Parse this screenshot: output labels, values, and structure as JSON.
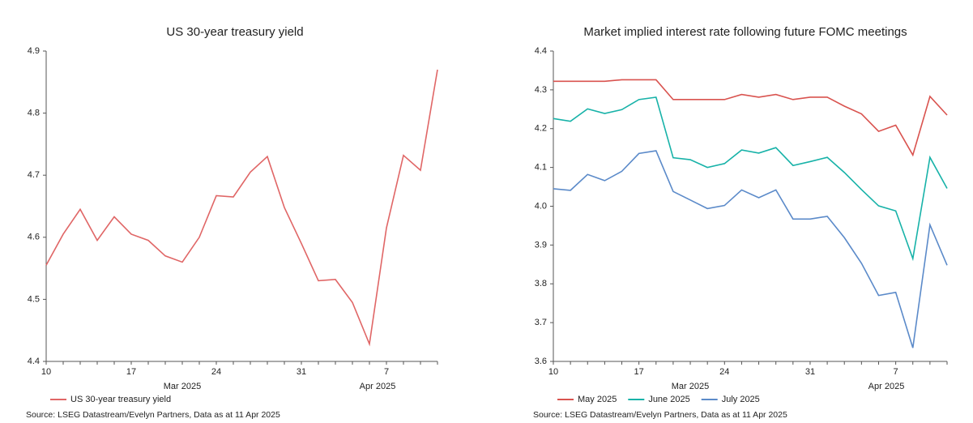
{
  "chart_data": [
    {
      "type": "line",
      "title": "US 30-year treasury yield",
      "categories": [
        "10",
        null,
        null,
        null,
        null,
        "17",
        null,
        null,
        null,
        null,
        "24",
        null,
        null,
        null,
        null,
        "31",
        null,
        null,
        null,
        null,
        "7",
        null,
        null,
        null
      ],
      "x_group_labels": [
        "Mar 2025",
        "Apr 2025"
      ],
      "series": [
        {
          "name": "US 30-year treasury yield",
          "color": "#e06666",
          "values": [
            4.555,
            4.605,
            4.645,
            4.595,
            4.633,
            4.605,
            4.595,
            4.57,
            4.56,
            4.6,
            4.667,
            4.665,
            4.705,
            4.73,
            4.648,
            4.59,
            4.53,
            4.532,
            4.495,
            4.428,
            4.615,
            4.732,
            4.708,
            4.87
          ]
        }
      ],
      "ylim": [
        4.4,
        4.9
      ],
      "yticks": [
        4.4,
        4.5,
        4.6,
        4.7,
        4.8,
        4.9
      ],
      "source": "Source: LSEG Datastream/Evelyn Partners, Data as at 11 Apr 2025"
    },
    {
      "type": "line",
      "title": "Market implied interest rate following future FOMC meetings",
      "categories": [
        "10",
        null,
        null,
        null,
        null,
        "17",
        null,
        null,
        null,
        null,
        "24",
        null,
        null,
        null,
        null,
        "31",
        null,
        null,
        null,
        null,
        "7",
        null,
        null,
        null
      ],
      "x_group_labels": [
        "Mar 2025",
        "Apr 2025"
      ],
      "series": [
        {
          "name": "May 2025",
          "color": "#d9534f",
          "values": [
            4.322,
            4.322,
            4.322,
            4.322,
            4.326,
            4.326,
            4.326,
            4.275,
            4.275,
            4.275,
            4.275,
            4.288,
            4.281,
            4.288,
            4.275,
            4.281,
            4.281,
            4.258,
            4.238,
            4.193,
            4.209,
            4.132,
            4.283,
            4.235
          ]
        },
        {
          "name": "June 2025",
          "color": "#17b2a8",
          "values": [
            4.226,
            4.219,
            4.251,
            4.239,
            4.249,
            4.275,
            4.281,
            4.125,
            4.12,
            4.1,
            4.11,
            4.145,
            4.137,
            4.151,
            4.105,
            4.115,
            4.126,
            4.087,
            4.043,
            4.001,
            3.988,
            3.865,
            4.126,
            4.046
          ]
        },
        {
          "name": "July 2025",
          "color": "#5b8ac9",
          "values": [
            4.045,
            4.041,
            4.082,
            4.066,
            4.09,
            4.136,
            4.143,
            4.038,
            4.016,
            3.994,
            4.002,
            4.042,
            4.022,
            4.042,
            3.967,
            3.967,
            3.974,
            3.919,
            3.853,
            3.77,
            3.778,
            3.635,
            3.952,
            3.848
          ]
        }
      ],
      "ylim": [
        3.6,
        4.4
      ],
      "yticks": [
        3.6,
        3.7,
        3.8,
        3.9,
        4.0,
        4.1,
        4.2,
        4.3,
        4.4
      ],
      "source": "Source: LSEG Datastream/Evelyn Partners, Data as at 11 Apr 2025"
    }
  ]
}
